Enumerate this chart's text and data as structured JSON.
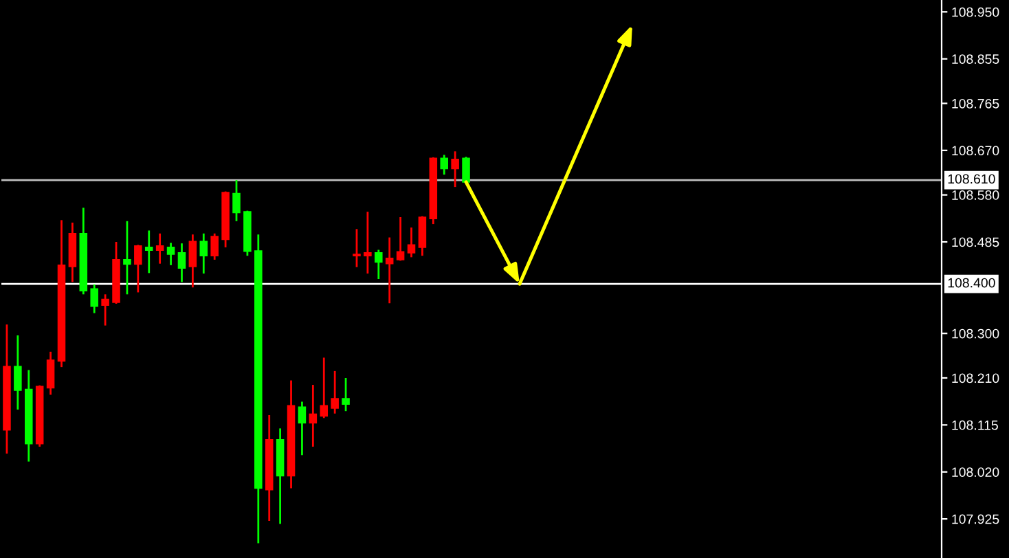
{
  "chart_data": {
    "type": "candlestick",
    "categories": [
      null,
      null,
      null,
      null,
      null,
      null,
      null,
      null,
      null,
      null,
      null,
      null,
      null,
      null,
      null,
      null,
      null,
      null,
      null,
      null,
      null,
      null,
      null,
      null,
      null,
      null,
      null,
      null,
      null,
      null,
      null,
      null,
      null,
      null,
      null,
      null,
      null,
      null,
      null,
      null,
      null,
      null,
      null,
      null,
      null,
      null,
      null,
      null,
      null,
      null,
      null,
      null,
      null,
      null,
      null,
      null,
      null,
      null,
      null,
      null,
      null,
      null,
      null,
      null,
      null,
      null,
      null,
      null,
      null,
      null,
      null,
      null,
      null,
      null,
      null,
      null,
      null,
      null,
      null,
      null,
      null,
      null,
      null,
      null,
      null,
      null
    ],
    "ohlc": [
      [
        108.105,
        108.318,
        108.057,
        108.233
      ],
      [
        108.233,
        108.296,
        108.146,
        108.185
      ],
      [
        108.187,
        108.226,
        108.041,
        108.077
      ],
      [
        108.077,
        108.195,
        108.071,
        108.193
      ],
      [
        108.19,
        108.263,
        108.176,
        108.246
      ],
      [
        108.244,
        108.529,
        108.232,
        108.438
      ],
      [
        108.435,
        108.524,
        108.404,
        108.502
      ],
      [
        108.502,
        108.554,
        108.379,
        108.386
      ],
      [
        108.39,
        108.399,
        108.341,
        108.355
      ],
      [
        108.357,
        108.379,
        108.316,
        108.369
      ],
      [
        108.363,
        108.485,
        108.36,
        108.449
      ],
      [
        108.449,
        108.527,
        108.379,
        108.44
      ],
      [
        108.44,
        108.479,
        108.383,
        108.477
      ],
      [
        108.474,
        108.508,
        108.422,
        108.468
      ],
      [
        108.468,
        108.502,
        108.441,
        108.477
      ],
      [
        108.474,
        108.483,
        108.438,
        108.46
      ],
      [
        108.463,
        108.482,
        108.404,
        108.432
      ],
      [
        108.435,
        108.5,
        108.393,
        108.486
      ],
      [
        108.486,
        108.502,
        108.421,
        108.457
      ],
      [
        108.457,
        108.502,
        108.449,
        108.496
      ],
      [
        108.49,
        108.587,
        108.474,
        108.585
      ],
      [
        108.583,
        108.61,
        108.527,
        108.544
      ],
      [
        108.546,
        108.548,
        108.457,
        108.466
      ],
      [
        108.467,
        108.5,
        107.876,
        107.987
      ],
      [
        107.984,
        108.135,
        107.921,
        108.085
      ],
      [
        108.085,
        108.108,
        107.915,
        108.012
      ],
      [
        108.012,
        108.205,
        107.987,
        108.154
      ],
      [
        108.151,
        108.162,
        108.054,
        108.119
      ],
      [
        108.119,
        108.196,
        108.071,
        108.137
      ],
      [
        108.133,
        108.251,
        108.129,
        108.154
      ],
      [
        108.149,
        108.224,
        108.138,
        108.168
      ],
      [
        108.168,
        108.21,
        108.143,
        108.157
      ],
      [
        108.457,
        108.511,
        108.434,
        108.46
      ],
      [
        108.457,
        108.546,
        108.421,
        108.463
      ],
      [
        108.463,
        108.469,
        108.41,
        108.444
      ],
      [
        108.441,
        108.494,
        108.361,
        108.452
      ],
      [
        108.449,
        108.535,
        108.447,
        108.465
      ],
      [
        108.463,
        108.514,
        108.454,
        108.479
      ],
      [
        108.474,
        108.537,
        108.457,
        108.535
      ],
      [
        108.532,
        108.656,
        108.521,
        108.654
      ],
      [
        108.654,
        108.661,
        108.621,
        108.633
      ],
      [
        108.633,
        108.668,
        108.596,
        108.652
      ],
      [
        108.654,
        108.657,
        108.604,
        108.606
      ],
      null,
      null,
      null,
      null,
      null,
      null,
      null,
      null,
      null,
      null,
      null,
      null,
      null,
      null,
      null,
      null,
      null,
      null,
      null,
      null,
      null,
      null,
      null,
      null,
      null,
      null,
      null,
      null,
      null,
      null,
      null,
      null,
      null,
      null,
      null,
      null,
      null,
      null,
      null,
      null,
      null,
      null,
      null
    ],
    "colors": [
      "#ff0000",
      "#00ff00",
      "#00ff00",
      "#ff0000",
      "#ff0000",
      "#ff0000",
      "#ff0000",
      "#00ff00",
      "#00ff00",
      "#ff0000",
      "#ff0000",
      "#00ff00",
      "#ff0000",
      "#00ff00",
      "#ff0000",
      "#00ff00",
      "#00ff00",
      "#ff0000",
      "#00ff00",
      "#ff0000",
      "#ff0000",
      "#00ff00",
      "#00ff00",
      "#00ff00",
      "#ff0000",
      "#00ff00",
      "#ff0000",
      "#00ff00",
      "#ff0000",
      "#ff0000",
      "#ff0000",
      "#00ff00",
      "#ff0000",
      "#ff0000",
      "#00ff00",
      "#ff0000",
      "#ff0000",
      "#ff0000",
      "#ff0000",
      "#ff0000",
      "#00ff00",
      "#ff0000",
      "#00ff00",
      null,
      null,
      null,
      null,
      null,
      null,
      null,
      null,
      null,
      null,
      null,
      null,
      null,
      null,
      null,
      null,
      null,
      null,
      null,
      null,
      null,
      null,
      null,
      null,
      null,
      null,
      null,
      null,
      null,
      null,
      null,
      null,
      null,
      null,
      null,
      null,
      null,
      null,
      null,
      null,
      null,
      null,
      null
    ],
    "ylim": [
      107.846,
      108.974
    ],
    "yticks": [
      {
        "value": 107.925,
        "label": "107.925"
      },
      {
        "value": 108.02,
        "label": "108.020"
      },
      {
        "value": 108.115,
        "label": "108.115"
      },
      {
        "value": 108.21,
        "label": "108.210"
      },
      {
        "value": 108.3,
        "label": "108.300"
      },
      {
        "value": 108.485,
        "label": "108.485"
      },
      {
        "value": 108.58,
        "label": "108.580"
      },
      {
        "value": 108.67,
        "label": "108.670"
      },
      {
        "value": 108.765,
        "label": "108.765"
      },
      {
        "value": 108.855,
        "label": "108.855"
      },
      {
        "value": 108.95,
        "label": "108.950"
      }
    ],
    "ref_lines": [
      {
        "axis": "y",
        "value": 108.61,
        "label": "108.610",
        "color": "#c0c0c0",
        "line_style": "solid"
      },
      {
        "axis": "y",
        "value": 108.4,
        "label": "108.400",
        "color": "#ffffff",
        "line_style": "solid"
      }
    ],
    "tick_labels": "y",
    "grid": false,
    "legend": false
  }
}
